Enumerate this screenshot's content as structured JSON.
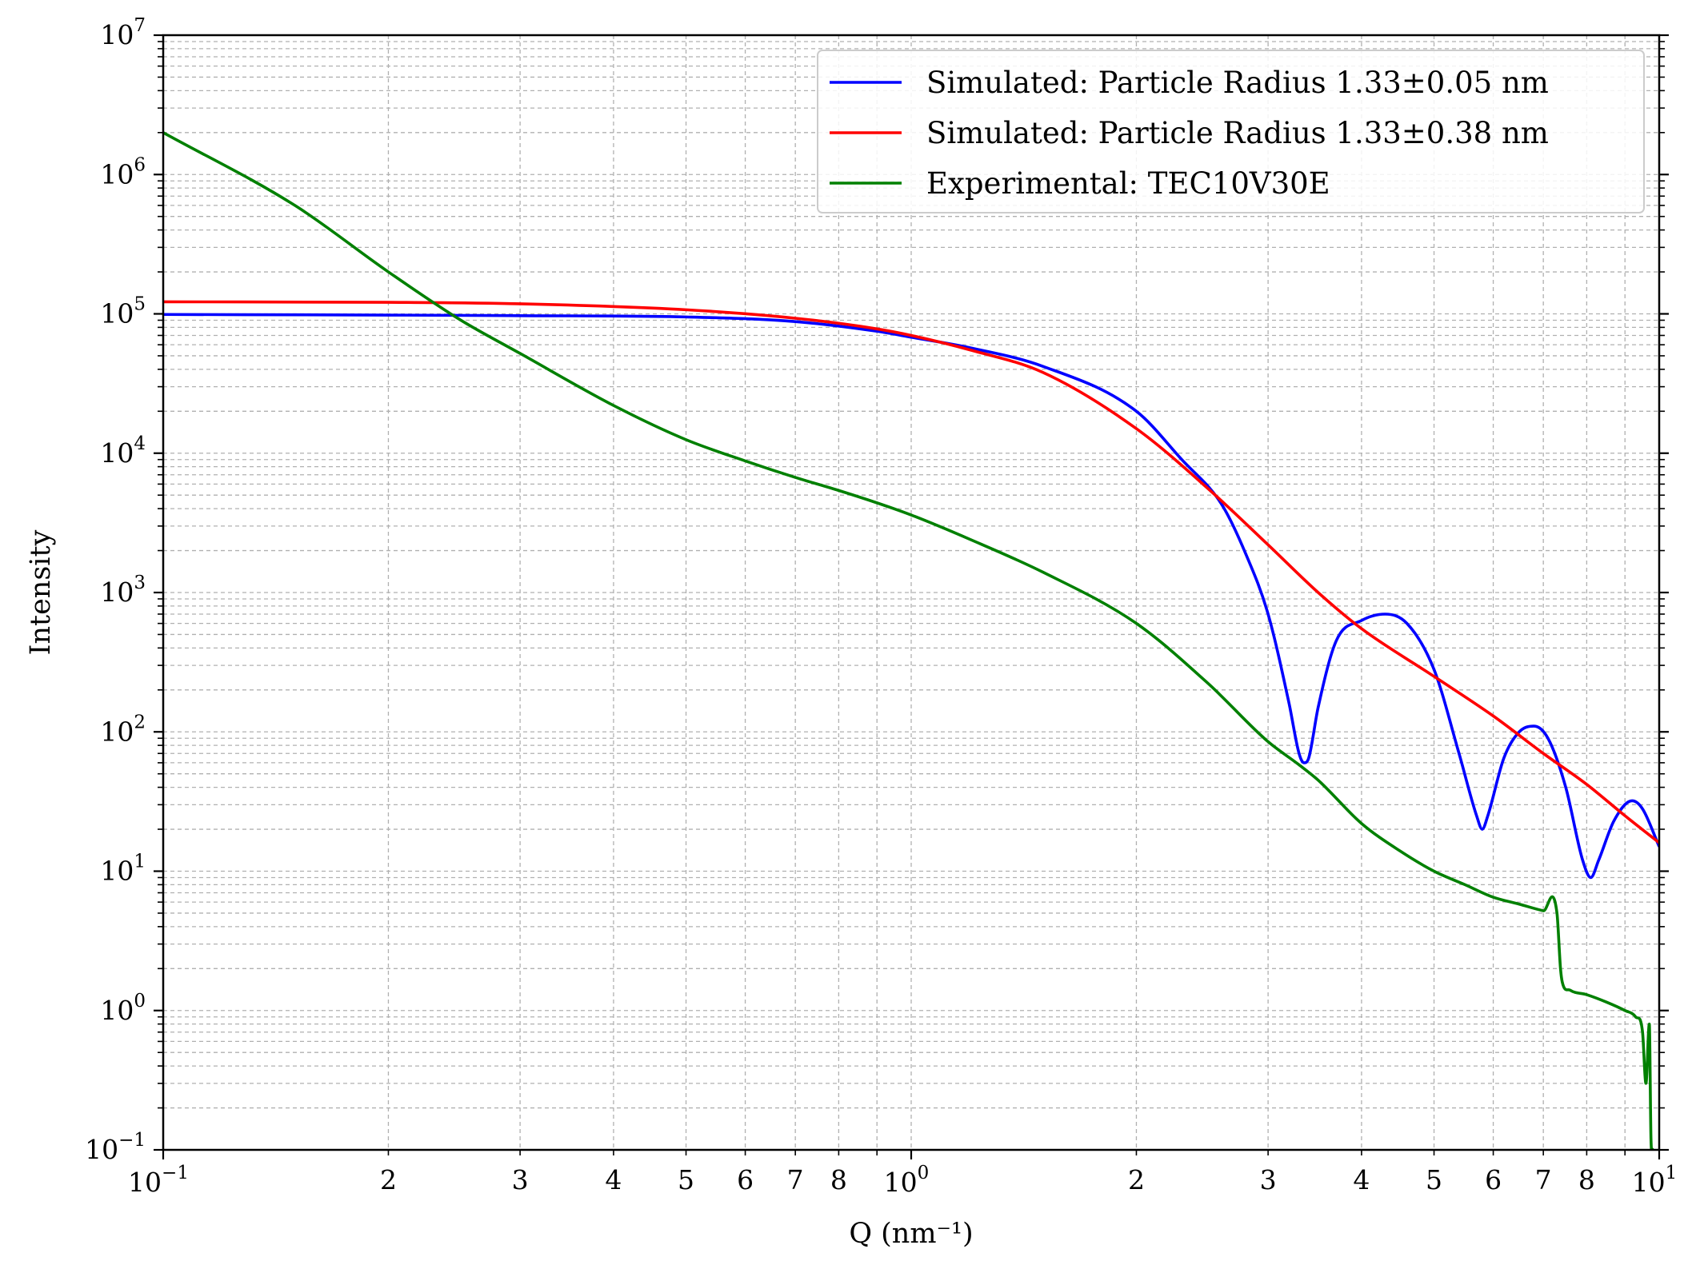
{
  "chart_data": {
    "type": "line",
    "title": "",
    "xlabel": "Q (nm⁻¹)",
    "ylabel": "Intensity",
    "xscale": "log",
    "yscale": "log",
    "xlim": [
      0.1,
      10
    ],
    "ylim": [
      0.1,
      10000000
    ],
    "grid": true,
    "grid_which": "both",
    "legend_position": "top-right",
    "x_ticks": {
      "major": [
        {
          "value": 0.1,
          "base": "10",
          "exp": "−1"
        },
        {
          "value": 1,
          "base": "10",
          "exp": "0"
        },
        {
          "value": 10,
          "base": "10",
          "exp": "1"
        }
      ],
      "minor": [
        {
          "value": 0.2,
          "label": "2"
        },
        {
          "value": 0.3,
          "label": "3"
        },
        {
          "value": 0.4,
          "label": "4"
        },
        {
          "value": 0.5,
          "label": "5"
        },
        {
          "value": 0.6,
          "label": "6"
        },
        {
          "value": 0.7,
          "label": "7"
        },
        {
          "value": 0.8,
          "label": "8"
        },
        {
          "value": 0.9,
          "label": ""
        },
        {
          "value": 2,
          "label": "2"
        },
        {
          "value": 3,
          "label": "3"
        },
        {
          "value": 4,
          "label": "4"
        },
        {
          "value": 5,
          "label": "5"
        },
        {
          "value": 6,
          "label": "6"
        },
        {
          "value": 7,
          "label": "7"
        },
        {
          "value": 8,
          "label": "8"
        },
        {
          "value": 9,
          "label": ""
        }
      ]
    },
    "y_ticks": [
      {
        "value": 0.1,
        "base": "10",
        "exp": "−1"
      },
      {
        "value": 1,
        "base": "10",
        "exp": "0"
      },
      {
        "value": 10,
        "base": "10",
        "exp": "1"
      },
      {
        "value": 100,
        "base": "10",
        "exp": "2"
      },
      {
        "value": 1000,
        "base": "10",
        "exp": "3"
      },
      {
        "value": 10000,
        "base": "10",
        "exp": "4"
      },
      {
        "value": 100000,
        "base": "10",
        "exp": "5"
      },
      {
        "value": 1000000,
        "base": "10",
        "exp": "6"
      },
      {
        "value": 10000000,
        "base": "10",
        "exp": "7"
      }
    ],
    "series": [
      {
        "name": "Simulated: Particle Radius 1.33±0.05 nm",
        "color": "#0000ff",
        "x": [
          0.1,
          0.2,
          0.3,
          0.5,
          0.7,
          0.9,
          1.0,
          1.2,
          1.5,
          2.0,
          2.3,
          2.6,
          2.8,
          3.0,
          3.2,
          3.3,
          3.35,
          3.4,
          3.5,
          3.7,
          4.0,
          4.3,
          4.6,
          5.0,
          5.4,
          5.7,
          5.8,
          5.9,
          6.2,
          6.5,
          6.8,
          7.1,
          7.5,
          7.9,
          8.1,
          8.3,
          8.7,
          9.2,
          9.5,
          10.0
        ],
        "y": [
          99000,
          98000,
          97000,
          95000,
          88000,
          75000,
          68000,
          57000,
          42000,
          20000,
          9000,
          4300,
          1900,
          700,
          160,
          70,
          60,
          65,
          150,
          450,
          630,
          700,
          600,
          280,
          70,
          25,
          20,
          25,
          65,
          100,
          110,
          90,
          40,
          12,
          9,
          12,
          23,
          32,
          28,
          15
        ]
      },
      {
        "name": "Simulated: Particle Radius 1.33±0.38 nm",
        "color": "#ff0000",
        "x": [
          0.1,
          0.2,
          0.3,
          0.5,
          0.7,
          0.9,
          1.0,
          1.2,
          1.5,
          2.0,
          2.5,
          3.0,
          3.5,
          4.0,
          5.0,
          6.0,
          7.0,
          8.0,
          9.0,
          10.0
        ],
        "y": [
          122000,
          121000,
          118000,
          107000,
          93000,
          78000,
          70000,
          55000,
          38000,
          15000,
          5500,
          2200,
          1000,
          550,
          250,
          130,
          70,
          42,
          25,
          16
        ]
      },
      {
        "name": "Experimental: TEC10V30E",
        "color": "#008000",
        "x": [
          0.1,
          0.15,
          0.2,
          0.25,
          0.3,
          0.4,
          0.5,
          0.6,
          0.7,
          0.8,
          0.9,
          1.0,
          1.2,
          1.5,
          2.0,
          2.5,
          3.0,
          3.3,
          3.5,
          4.0,
          4.5,
          5.0,
          5.5,
          6.0,
          6.5,
          7.0,
          7.3,
          7.38,
          7.42,
          7.6,
          8.0,
          8.5,
          9.0,
          9.3,
          9.5,
          9.6,
          9.7,
          9.75,
          9.8
        ],
        "y": [
          2000000,
          600000,
          200000,
          90000,
          52000,
          22000,
          12500,
          8800,
          6700,
          5400,
          4400,
          3600,
          2400,
          1400,
          600,
          220,
          85,
          58,
          45,
          22,
          14,
          10,
          8,
          6.5,
          5.8,
          5.2,
          5.0,
          2.0,
          1.6,
          1.4,
          1.3,
          1.15,
          1.0,
          0.9,
          0.7,
          0.3,
          0.8,
          0.12,
          0.1
        ]
      }
    ]
  }
}
